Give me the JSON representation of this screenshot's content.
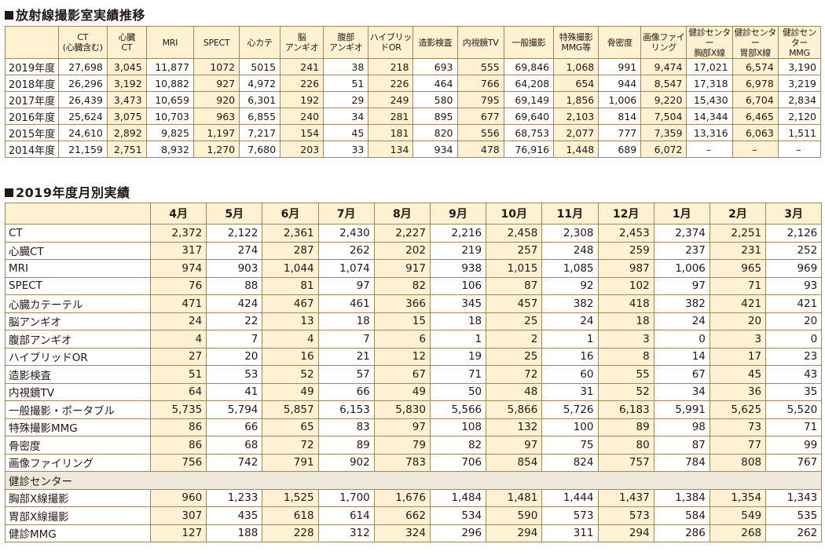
{
  "section1": {
    "title": "放射線撮影室実績推移",
    "headers": [
      "",
      "CT\n(心臓含む)",
      "心臓\nCT",
      "MRI",
      "SPECT",
      "心カテ",
      "脳\nアンギオ",
      "腹部\nアンギオ",
      "ハイブリッ\nドOR",
      "造影検査",
      "内視鏡TV",
      "一般撮影",
      "特殊撮影\nMMG等",
      "骨密度",
      "画像ファイ\nリング",
      "健診センター\n胸部X線",
      "健診センター\n胃部X線",
      "健診センター\nMMG"
    ],
    "rows": [
      {
        "label": "2019年度",
        "values": [
          "27,698",
          "3,045",
          "11,877",
          "1072",
          "5015",
          "241",
          "38",
          "218",
          "693",
          "555",
          "69,846",
          "1,068",
          "991",
          "9,474",
          "17,021",
          "6,574",
          "3,190"
        ]
      },
      {
        "label": "2018年度",
        "values": [
          "26,296",
          "3,192",
          "10,882",
          "927",
          "4,972",
          "226",
          "51",
          "226",
          "464",
          "766",
          "64,208",
          "654",
          "944",
          "8,547",
          "17,318",
          "6,978",
          "3,219"
        ]
      },
      {
        "label": "2017年度",
        "values": [
          "26,439",
          "3,473",
          "10,659",
          "920",
          "6,301",
          "192",
          "29",
          "249",
          "580",
          "795",
          "69,149",
          "1,856",
          "1,006",
          "9,220",
          "15,430",
          "6,704",
          "2,834"
        ]
      },
      {
        "label": "2016年度",
        "values": [
          "25,624",
          "3,075",
          "10,703",
          "963",
          "6,855",
          "240",
          "34",
          "281",
          "895",
          "677",
          "69,640",
          "2,103",
          "814",
          "7,504",
          "14,344",
          "6,465",
          "2,120"
        ]
      },
      {
        "label": "2015年度",
        "values": [
          "24,610",
          "2,892",
          "9,825",
          "1,197",
          "7,217",
          "154",
          "45",
          "181",
          "820",
          "556",
          "68,753",
          "2,077",
          "777",
          "7,359",
          "13,316",
          "6,063",
          "1,511"
        ]
      },
      {
        "label": "2014年度",
        "values": [
          "21,159",
          "2,751",
          "8,932",
          "1,270",
          "7,680",
          "203",
          "33",
          "134",
          "934",
          "478",
          "76,916",
          "1,448",
          "689",
          "6,072",
          "–",
          "–",
          "–"
        ]
      }
    ]
  },
  "section2": {
    "title": "2019年度月別実績",
    "months": [
      "4月",
      "5月",
      "6月",
      "7月",
      "8月",
      "9月",
      "10月",
      "11月",
      "12月",
      "1月",
      "2月",
      "3月"
    ],
    "rows": [
      {
        "label": "CT",
        "values": [
          "2,372",
          "2,122",
          "2,361",
          "2,430",
          "2,227",
          "2,216",
          "2,458",
          "2,308",
          "2,453",
          "2,374",
          "2,251",
          "2,126"
        ]
      },
      {
        "label": "心臓CT",
        "values": [
          "317",
          "274",
          "287",
          "262",
          "202",
          "219",
          "257",
          "248",
          "259",
          "237",
          "231",
          "252"
        ]
      },
      {
        "label": "MRI",
        "values": [
          "974",
          "903",
          "1,044",
          "1,074",
          "917",
          "938",
          "1,015",
          "1,085",
          "987",
          "1,006",
          "965",
          "969"
        ]
      },
      {
        "label": "SPECT",
        "values": [
          "76",
          "88",
          "81",
          "97",
          "82",
          "106",
          "87",
          "92",
          "102",
          "97",
          "71",
          "93"
        ]
      },
      {
        "label": "心臓カテーテル",
        "values": [
          "471",
          "424",
          "467",
          "461",
          "366",
          "345",
          "457",
          "382",
          "418",
          "382",
          "421",
          "421"
        ]
      },
      {
        "label": "脳アンギオ",
        "values": [
          "24",
          "22",
          "13",
          "18",
          "15",
          "18",
          "25",
          "24",
          "18",
          "24",
          "20",
          "20"
        ]
      },
      {
        "label": "腹部アンギオ",
        "values": [
          "4",
          "7",
          "4",
          "7",
          "6",
          "1",
          "2",
          "1",
          "3",
          "0",
          "3",
          "0"
        ]
      },
      {
        "label": "ハイブリッドOR",
        "values": [
          "27",
          "20",
          "16",
          "21",
          "12",
          "19",
          "25",
          "16",
          "8",
          "14",
          "17",
          "23"
        ]
      },
      {
        "label": "造影検査",
        "values": [
          "51",
          "53",
          "52",
          "57",
          "67",
          "71",
          "72",
          "60",
          "55",
          "67",
          "45",
          "43"
        ]
      },
      {
        "label": "内視鏡TV",
        "values": [
          "64",
          "41",
          "49",
          "66",
          "49",
          "50",
          "48",
          "31",
          "52",
          "34",
          "36",
          "35"
        ]
      },
      {
        "label": "一般撮影・ポータブル",
        "values": [
          "5,735",
          "5,794",
          "5,857",
          "6,153",
          "5,830",
          "5,566",
          "5,866",
          "5,726",
          "6,183",
          "5,991",
          "5,625",
          "5,520"
        ]
      },
      {
        "label": "特殊撮影MMG",
        "values": [
          "86",
          "66",
          "65",
          "83",
          "97",
          "108",
          "132",
          "100",
          "89",
          "98",
          "73",
          "71"
        ]
      },
      {
        "label": "骨密度",
        "values": [
          "86",
          "68",
          "72",
          "89",
          "79",
          "82",
          "97",
          "75",
          "80",
          "87",
          "77",
          "99"
        ]
      },
      {
        "label": "画像ファイリング",
        "values": [
          "756",
          "742",
          "791",
          "902",
          "783",
          "706",
          "854",
          "824",
          "757",
          "784",
          "808",
          "767"
        ]
      }
    ],
    "subsection_label": "健診センター",
    "subrows": [
      {
        "label": "胸部X線撮影",
        "values": [
          "960",
          "1,233",
          "1,525",
          "1,700",
          "1,676",
          "1,484",
          "1,481",
          "1,444",
          "1,437",
          "1,384",
          "1,354",
          "1,343"
        ]
      },
      {
        "label": "胃部X線撮影",
        "values": [
          "307",
          "435",
          "618",
          "614",
          "662",
          "534",
          "590",
          "573",
          "573",
          "584",
          "549",
          "535"
        ]
      },
      {
        "label": "健診MMG",
        "values": [
          "127",
          "188",
          "228",
          "312",
          "324",
          "296",
          "294",
          "311",
          "294",
          "286",
          "268",
          "262"
        ]
      }
    ]
  }
}
